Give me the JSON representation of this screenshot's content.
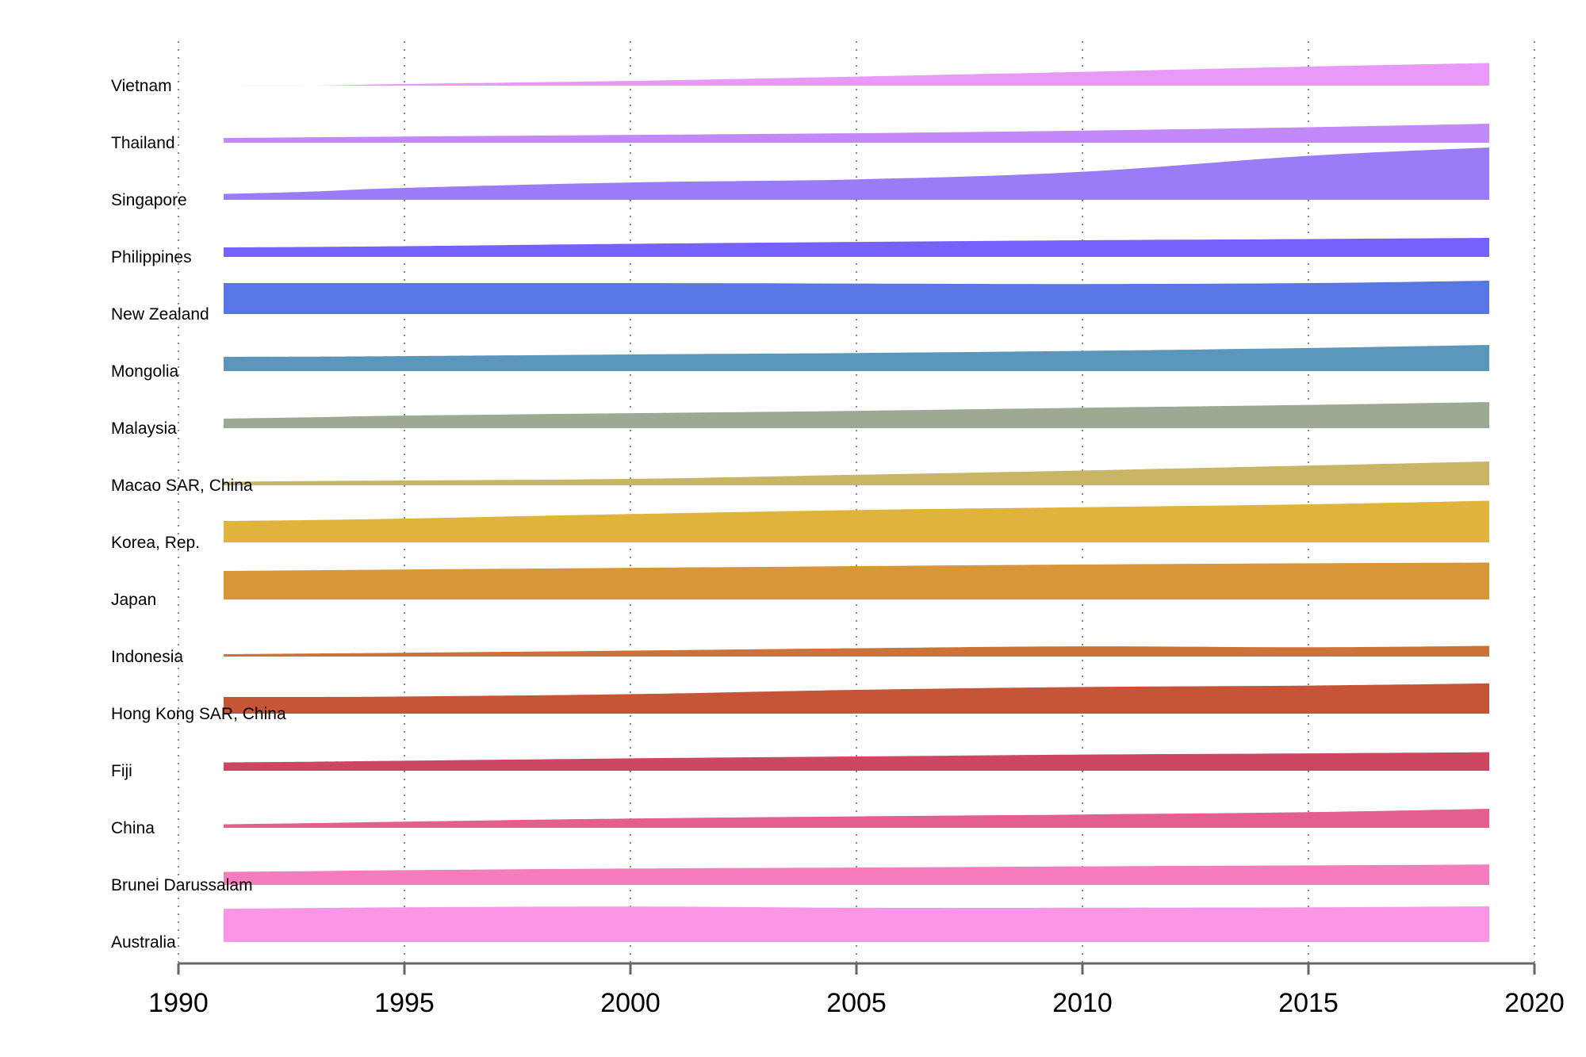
{
  "chart_data": {
    "type": "area",
    "title": "",
    "xlabel": "",
    "ylabel": "",
    "xlim": [
      1990,
      2020
    ],
    "x_ticks": [
      "1990",
      "1995",
      "2000",
      "2005",
      "2010",
      "2015",
      "2020"
    ],
    "x": [
      1991,
      1993,
      1995,
      2000,
      2005,
      2010,
      2015,
      2019
    ],
    "grid": "vertical dotted",
    "legend": "none",
    "series": [
      {
        "name": "Vietnam",
        "color": "#e899f9",
        "values": [
          0,
          0,
          0.7,
          2.0,
          3.8,
          5.8,
          8.0,
          9.5
        ]
      },
      {
        "name": "Thailand",
        "color": "#c388fa",
        "values": [
          2.0,
          2.3,
          2.6,
          3.3,
          4.0,
          5.1,
          6.5,
          8.0
        ]
      },
      {
        "name": "Singapore",
        "color": "#9a7cf9",
        "values": [
          2.5,
          3.5,
          5.0,
          7.3,
          8.6,
          11.8,
          18.5,
          22.0
        ]
      },
      {
        "name": "Philippines",
        "color": "#7562fa",
        "values": [
          4.0,
          4.2,
          4.5,
          5.5,
          6.3,
          7.0,
          7.5,
          8.0
        ]
      },
      {
        "name": "New Zealand",
        "color": "#5977e4",
        "values": [
          13.0,
          13.0,
          13.0,
          13.0,
          12.8,
          12.6,
          13.0,
          14.0
        ]
      },
      {
        "name": "Mongolia",
        "color": "#5b97bd",
        "values": [
          6.0,
          6.1,
          6.3,
          7.0,
          7.6,
          8.5,
          9.7,
          11.0
        ]
      },
      {
        "name": "Malaysia",
        "color": "#9caa93",
        "values": [
          4.0,
          4.6,
          5.3,
          6.3,
          7.3,
          8.6,
          9.8,
          11.0
        ]
      },
      {
        "name": "Macao SAR, China",
        "color": "#c8b565",
        "values": [
          1.5,
          1.8,
          2.0,
          2.7,
          4.4,
          6.2,
          8.3,
          10.0
        ]
      },
      {
        "name": "Korea, Rep.",
        "color": "#dfb33c",
        "values": [
          9.0,
          9.4,
          10.0,
          11.9,
          13.6,
          14.8,
          16.0,
          17.5
        ]
      },
      {
        "name": "Japan",
        "color": "#d99638",
        "values": [
          12.0,
          12.3,
          12.6,
          13.3,
          14.0,
          14.7,
          15.2,
          15.5
        ]
      },
      {
        "name": "Indonesia",
        "color": "#cd7337",
        "values": [
          1.0,
          1.3,
          1.6,
          2.5,
          3.5,
          4.3,
          3.9,
          4.5
        ]
      },
      {
        "name": "Hong Kong SAR, China",
        "color": "#c65537",
        "values": [
          7.0,
          7.0,
          7.2,
          8.2,
          10.0,
          11.2,
          11.8,
          12.7
        ]
      },
      {
        "name": "Fiji",
        "color": "#cd4760",
        "values": [
          3.5,
          3.8,
          4.2,
          5.2,
          6.0,
          6.8,
          7.3,
          7.8
        ]
      },
      {
        "name": "China",
        "color": "#e45e8f",
        "values": [
          1.5,
          2.0,
          2.6,
          3.9,
          4.8,
          5.6,
          6.6,
          8.0
        ]
      },
      {
        "name": "Brunei Darussalam",
        "color": "#f57cbd",
        "values": [
          5.5,
          5.8,
          6.2,
          6.9,
          7.3,
          7.8,
          8.2,
          8.6
        ]
      },
      {
        "name": "Australia",
        "color": "#fb96e6",
        "values": [
          14.0,
          14.3,
          14.6,
          14.9,
          14.4,
          14.4,
          14.6,
          15.0
        ]
      }
    ]
  }
}
